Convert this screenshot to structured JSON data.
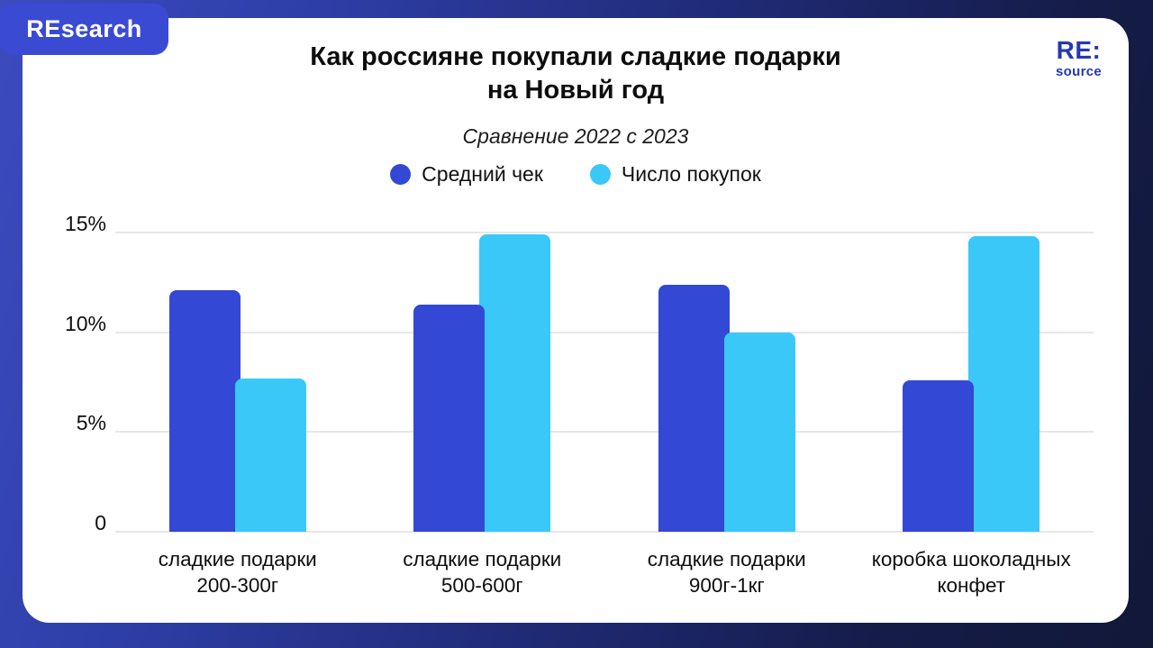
{
  "badge": {
    "label": "REsearch"
  },
  "logo": {
    "line1": "RE:",
    "line2": "source"
  },
  "colors": {
    "background_gradient_start": "#3c4cc0",
    "background_gradient_end": "#111838",
    "card": "#ffffff",
    "badge": "#3b4ad3",
    "logo_text": "#2438b5",
    "gridline": "#e7e7e7",
    "text": "#0d0d0d"
  },
  "chart_data": {
    "type": "bar",
    "title": "Как россияне покупали сладкие подарки\nна Новый год",
    "subtitle": "Сравнение 2022 с 2023",
    "categories": [
      "сладкие подарки\n200-300г",
      "сладкие подарки\n500-600г",
      "сладкие подарки\n900г-1кг",
      "коробка шоколадных\nконфет"
    ],
    "series": [
      {
        "name": "Средний чек",
        "color": "#3348d5",
        "values": [
          12.1,
          11.4,
          12.4,
          7.6
        ]
      },
      {
        "name": "Число покупок",
        "color": "#3ac8f9",
        "values": [
          7.7,
          14.9,
          10.0,
          14.8
        ]
      }
    ],
    "xlabel": "",
    "ylabel": "",
    "ylim": [
      0,
      15
    ],
    "y_ticks": [
      {
        "value": 0,
        "label": "0"
      },
      {
        "value": 5,
        "label": "5%"
      },
      {
        "value": 10,
        "label": "10%"
      },
      {
        "value": 15,
        "label": "15%"
      }
    ],
    "grid": true,
    "legend_position": "top",
    "unit": "%"
  }
}
